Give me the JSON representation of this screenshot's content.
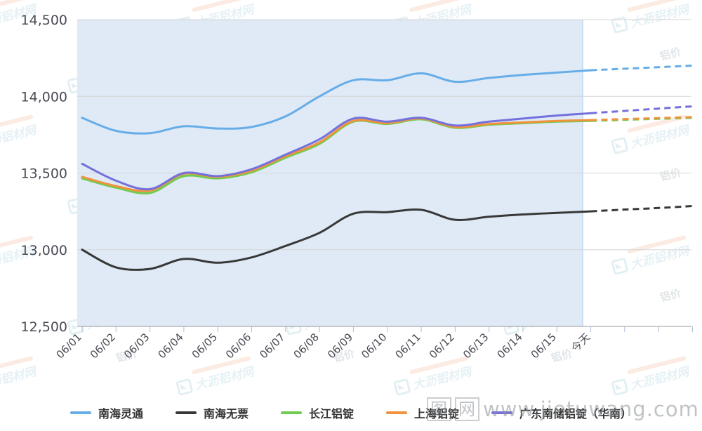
{
  "chart_data": {
    "type": "line",
    "title": "",
    "x_labels": [
      "06/01",
      "06/02",
      "06/03",
      "06/04",
      "06/05",
      "06/06",
      "06/07",
      "06/08",
      "06/09",
      "06/10",
      "06/11",
      "06/12",
      "06/13",
      "06/14",
      "06/15",
      "今天",
      "",
      "",
      ""
    ],
    "y_ticks": [
      12500,
      13000,
      13500,
      14000,
      14500
    ],
    "y_tick_labels": [
      "12,500",
      "13,000",
      "13,500",
      "14,000",
      "14,500"
    ],
    "ylim": [
      12500,
      14500
    ],
    "grid": true,
    "legend_position": "bottom",
    "solid_until_index": 15,
    "plot_bg_color": "#dfeaf6",
    "forecast_bg_color": "#ffffff",
    "series": [
      {
        "name": "南海灵通",
        "color": "#66ade8",
        "values": [
          13860,
          13775,
          13760,
          13805,
          13790,
          13800,
          13870,
          14000,
          14105,
          14105,
          14150,
          14095,
          14120,
          14140,
          14155,
          14170,
          14180,
          14190,
          14200
        ]
      },
      {
        "name": "南海无票",
        "color": "#383838",
        "values": [
          13000,
          12885,
          12875,
          12940,
          12915,
          12950,
          13025,
          13110,
          13235,
          13245,
          13260,
          13195,
          13215,
          13230,
          13240,
          13250,
          13262,
          13272,
          13285
        ]
      },
      {
        "name": "长江铝锭",
        "color": "#70cc50",
        "values": [
          13465,
          13405,
          13370,
          13480,
          13465,
          13505,
          13600,
          13690,
          13835,
          13820,
          13850,
          13795,
          13815,
          13825,
          13835,
          13840,
          13847,
          13854,
          13860
        ]
      },
      {
        "name": "上海铝锭",
        "color": "#f0923e",
        "values": [
          13475,
          13415,
          13385,
          13495,
          13475,
          13515,
          13610,
          13700,
          13840,
          13825,
          13855,
          13800,
          13820,
          13830,
          13840,
          13845,
          13852,
          13858,
          13865
        ]
      },
      {
        "name": "广东南储铝锭（华南）",
        "color": "#7470dc",
        "values": [
          13560,
          13450,
          13395,
          13500,
          13480,
          13525,
          13620,
          13720,
          13855,
          13835,
          13860,
          13810,
          13835,
          13855,
          13875,
          13890,
          13905,
          13920,
          13935
        ]
      }
    ]
  },
  "legend": {
    "items": [
      "南海灵通",
      "南海无票",
      "长江铝锭",
      "上海铝锭",
      "广东南储铝锭（华南）"
    ]
  },
  "watermark": {
    "brand": "大沥铝材网",
    "price_label": "铝价"
  },
  "overlay_watermark": {
    "boxed_chars": [
      "图",
      "网"
    ],
    "url": "www.jietuwang.com"
  }
}
